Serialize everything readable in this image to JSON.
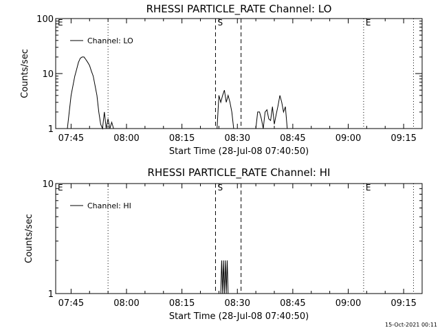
{
  "footer": {
    "timestamp": "15-Oct-2021 00:11"
  },
  "chart_data": [
    {
      "type": "line",
      "title": "RHESSI PARTICLE_RATE Channel: LO",
      "xlabel": "Start Time (28-Jul-08 07:40:50)",
      "ylabel": "Counts/sec",
      "y_scale": "log",
      "ylim": [
        1,
        100
      ],
      "xlim": [
        "07:40:50",
        "09:20:00"
      ],
      "x_ticks": [
        "07:45",
        "08:00",
        "08:15",
        "08:30",
        "08:45",
        "09:00",
        "09:15"
      ],
      "y_ticks": [
        "1",
        "10",
        "100"
      ],
      "legend": {
        "position": "top-left"
      },
      "series": [
        {
          "name": "Channel: LO",
          "color": "#000000",
          "x": [
            "07:44:00",
            "07:44:30",
            "07:45:00",
            "07:45:30",
            "07:46:00",
            "07:46:30",
            "07:47:00",
            "07:47:30",
            "07:48:00",
            "07:48:30",
            "07:49:00",
            "07:49:30",
            "07:50:00",
            "07:50:30",
            "07:51:00",
            "07:51:30",
            "07:52:00",
            "07:52:30",
            "07:53:00",
            "07:53:30",
            "07:54:00",
            "07:54:30",
            "07:55:00",
            "07:55:30",
            "07:56:00",
            "07:56:30",
            "08:24:30",
            "08:25:00",
            "08:25:30",
            "08:26:00",
            "08:26:30",
            "08:27:00",
            "08:27:30",
            "08:28:00",
            "08:28:30",
            "08:29:00",
            "08:35:00",
            "08:35:30",
            "08:36:00",
            "08:36:30",
            "08:37:00",
            "08:37:30",
            "08:38:00",
            "08:38:30",
            "08:39:00",
            "08:39:30",
            "08:40:00",
            "08:40:30",
            "08:41:00",
            "08:41:30",
            "08:42:00",
            "08:42:30",
            "08:43:00",
            "08:43:30"
          ],
          "y": [
            1,
            2,
            4,
            6,
            9,
            12,
            16,
            19,
            20,
            20,
            18,
            16,
            14,
            11,
            9,
            6,
            4,
            2,
            1.2,
            1,
            2,
            1,
            1.5,
            1,
            1.3,
            1,
            1,
            4,
            3,
            4,
            5,
            3,
            4,
            3,
            2,
            1,
            1,
            2,
            2,
            1.5,
            1,
            2,
            2.2,
            1.5,
            1.4,
            2.5,
            1.2,
            1.8,
            2.6,
            4,
            3,
            2,
            2.5,
            1
          ]
        }
      ],
      "annotations": [
        {
          "label": "E",
          "time": "07:40:50",
          "style": "dotted"
        },
        {
          "label": "",
          "time": "07:55:00",
          "style": "dotted"
        },
        {
          "label": "S",
          "time": "08:24:05",
          "style": "dashed"
        },
        {
          "label": "",
          "time": "08:31:00",
          "style": "dashed"
        },
        {
          "label": "E",
          "time": "09:04:10",
          "style": "dotted"
        },
        {
          "label": "",
          "time": "09:17:40",
          "style": "dotted"
        }
      ]
    },
    {
      "type": "line",
      "title": "RHESSI PARTICLE_RATE Channel: HI",
      "xlabel": "Start Time (28-Jul-08 07:40:50)",
      "ylabel": "Counts/sec",
      "y_scale": "log",
      "ylim": [
        1,
        10
      ],
      "xlim": [
        "07:40:50",
        "09:20:00"
      ],
      "x_ticks": [
        "07:45",
        "08:00",
        "08:15",
        "08:30",
        "08:45",
        "09:00",
        "09:15"
      ],
      "y_ticks": [
        "1",
        "10"
      ],
      "legend": {
        "position": "top-left"
      },
      "series": [
        {
          "name": "Channel: HI",
          "color": "#000000",
          "x": [
            "08:25:30",
            "08:25:45",
            "08:26:00",
            "08:26:15",
            "08:26:30",
            "08:26:45",
            "08:27:00",
            "08:27:15",
            "08:27:30"
          ],
          "y": [
            1,
            2,
            1,
            2,
            1,
            2,
            1,
            2,
            1
          ]
        }
      ],
      "annotations": [
        {
          "label": "E",
          "time": "07:40:50",
          "style": "dotted"
        },
        {
          "label": "",
          "time": "07:55:00",
          "style": "dotted"
        },
        {
          "label": "S",
          "time": "08:24:05",
          "style": "dashed"
        },
        {
          "label": "",
          "time": "08:31:00",
          "style": "dashed"
        },
        {
          "label": "E",
          "time": "09:04:10",
          "style": "dotted"
        },
        {
          "label": "",
          "time": "09:17:40",
          "style": "dotted"
        }
      ]
    }
  ]
}
